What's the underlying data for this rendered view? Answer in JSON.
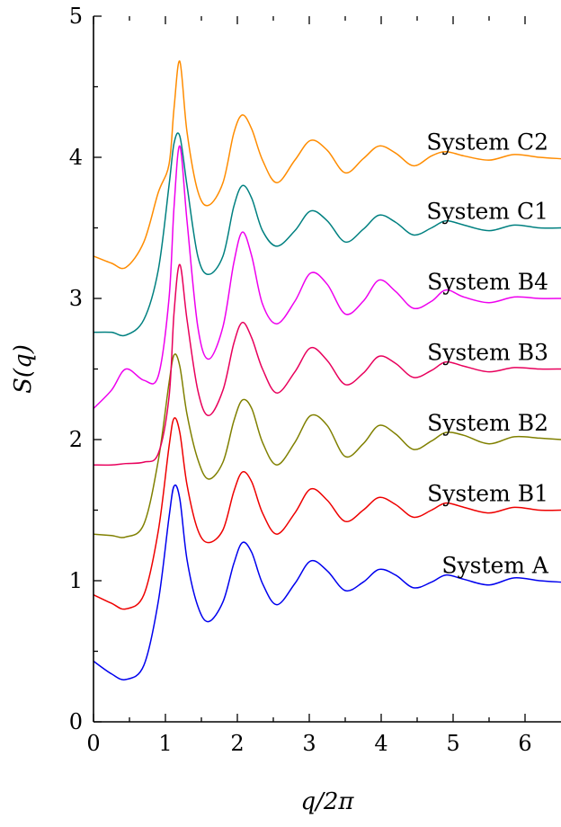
{
  "chart_data": {
    "type": "line",
    "title": "",
    "xlabel": "q/2π",
    "ylabel": "S(q)",
    "xlim": [
      0,
      6.5
    ],
    "ylim": [
      0,
      5
    ],
    "x_ticks": [
      0,
      1,
      2,
      3,
      4,
      5,
      6
    ],
    "y_ticks": [
      0,
      1,
      2,
      3,
      4,
      5
    ],
    "grid": false,
    "legend": "labels placed beside each curve on the right",
    "x": [
      0.0,
      0.25,
      0.45,
      0.7,
      0.9,
      1.05,
      1.12,
      1.2,
      1.3,
      1.45,
      1.6,
      1.8,
      1.95,
      2.07,
      2.2,
      2.35,
      2.55,
      2.8,
      3.02,
      3.25,
      3.5,
      3.75,
      3.97,
      4.2,
      4.45,
      4.7,
      4.9,
      5.15,
      5.5,
      5.85,
      6.2,
      6.5
    ],
    "series": [
      {
        "name": "System A",
        "color": "#0000ee",
        "values": [
          0.43,
          0.34,
          0.3,
          0.4,
          0.85,
          1.45,
          1.67,
          1.58,
          1.15,
          0.82,
          0.71,
          0.85,
          1.12,
          1.27,
          1.2,
          0.98,
          0.83,
          0.98,
          1.14,
          1.07,
          0.93,
          0.99,
          1.08,
          1.04,
          0.95,
          0.99,
          1.04,
          1.01,
          0.97,
          1.02,
          1.0,
          0.99
        ]
      },
      {
        "name": "System B1",
        "color": "#ee0000",
        "values": [
          0.9,
          0.84,
          0.8,
          0.9,
          1.35,
          1.95,
          2.15,
          2.05,
          1.68,
          1.36,
          1.27,
          1.36,
          1.63,
          1.77,
          1.7,
          1.48,
          1.33,
          1.48,
          1.65,
          1.57,
          1.42,
          1.5,
          1.59,
          1.54,
          1.45,
          1.5,
          1.55,
          1.52,
          1.48,
          1.52,
          1.5,
          1.5
        ]
      },
      {
        "name": "System B2",
        "color": "#808000",
        "values": [
          1.33,
          1.32,
          1.31,
          1.4,
          1.85,
          2.4,
          2.6,
          2.52,
          2.18,
          1.86,
          1.72,
          1.84,
          2.13,
          2.28,
          2.22,
          1.98,
          1.82,
          1.98,
          2.17,
          2.1,
          1.88,
          1.97,
          2.1,
          2.04,
          1.93,
          1.99,
          2.05,
          2.03,
          1.97,
          2.02,
          2.01,
          2.0
        ]
      },
      {
        "name": "System B3",
        "color": "#e8005c",
        "values": [
          1.82,
          1.82,
          1.83,
          1.84,
          1.9,
          2.3,
          2.9,
          3.24,
          2.85,
          2.35,
          2.17,
          2.35,
          2.68,
          2.83,
          2.72,
          2.5,
          2.33,
          2.48,
          2.65,
          2.56,
          2.39,
          2.47,
          2.59,
          2.54,
          2.44,
          2.49,
          2.55,
          2.52,
          2.48,
          2.51,
          2.5,
          2.5
        ]
      },
      {
        "name": "System B4",
        "color": "#ee00ee",
        "values": [
          2.22,
          2.35,
          2.5,
          2.42,
          2.45,
          3.0,
          3.65,
          4.08,
          3.55,
          2.8,
          2.57,
          2.8,
          3.25,
          3.47,
          3.3,
          2.96,
          2.82,
          2.98,
          3.18,
          3.1,
          2.89,
          2.98,
          3.13,
          3.05,
          2.93,
          2.98,
          3.06,
          3.01,
          2.97,
          3.01,
          3.0,
          3.0
        ]
      },
      {
        "name": "System C1",
        "color": "#008080",
        "values": [
          2.76,
          2.76,
          2.74,
          2.85,
          3.2,
          3.8,
          4.1,
          4.15,
          3.8,
          3.3,
          3.17,
          3.3,
          3.65,
          3.8,
          3.71,
          3.48,
          3.37,
          3.48,
          3.62,
          3.55,
          3.4,
          3.49,
          3.59,
          3.54,
          3.45,
          3.5,
          3.55,
          3.52,
          3.48,
          3.52,
          3.5,
          3.5
        ]
      },
      {
        "name": "System C2",
        "color": "#ff8c00",
        "values": [
          3.3,
          3.25,
          3.22,
          3.4,
          3.75,
          3.95,
          4.35,
          4.68,
          4.18,
          3.76,
          3.66,
          3.82,
          4.17,
          4.3,
          4.2,
          3.98,
          3.82,
          3.98,
          4.12,
          4.05,
          3.89,
          3.99,
          4.08,
          4.03,
          3.94,
          4.01,
          4.04,
          4.01,
          3.98,
          4.02,
          4.0,
          3.99
        ]
      }
    ]
  }
}
